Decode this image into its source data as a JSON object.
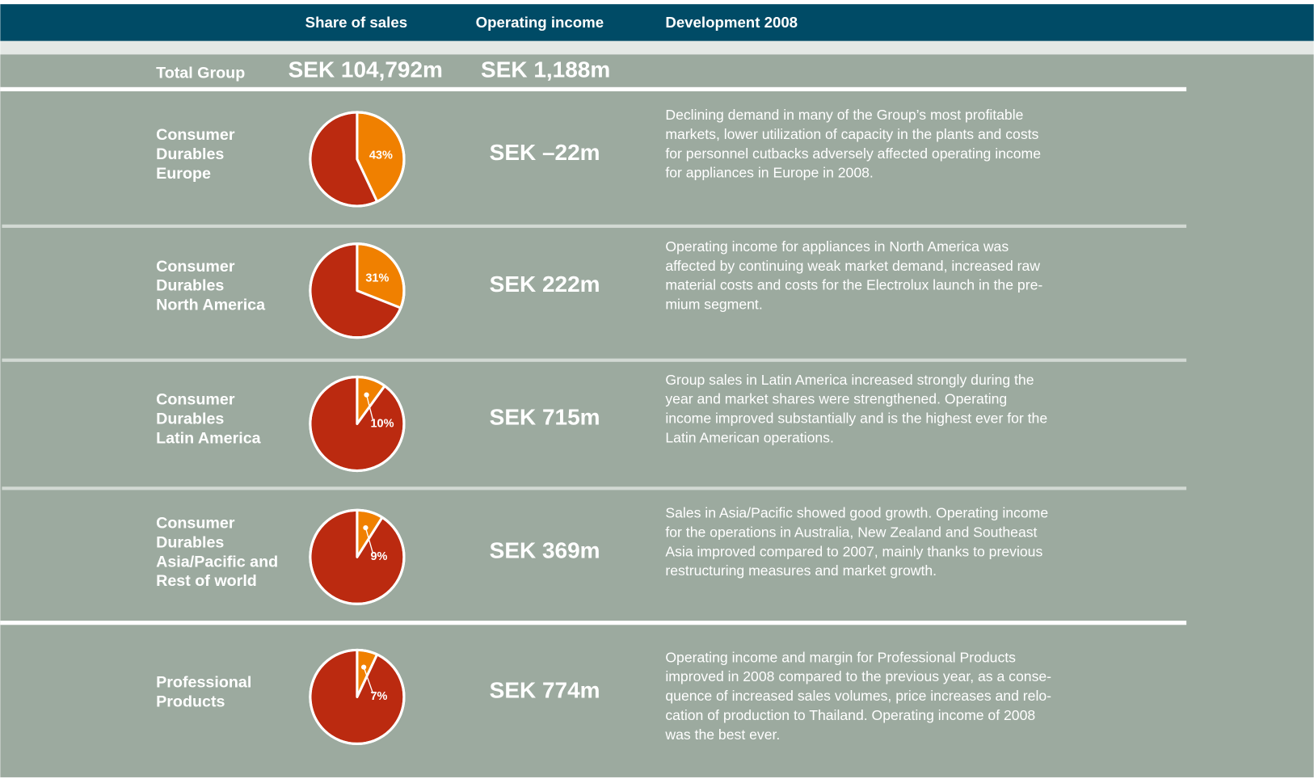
{
  "header": {
    "columns": [
      "Share of sales",
      "Operating income",
      "Development 2008"
    ]
  },
  "total": {
    "name": "Total Group",
    "sales": "SEK 104,792m",
    "income": "SEK 1,188m"
  },
  "rows": [
    {
      "name": [
        "Consumer",
        "Durables",
        "Europe"
      ],
      "share": 43,
      "share_label": "43%",
      "income": "SEK –22m",
      "text": [
        "Declining demand in many of the Group’s most profitable",
        "markets, lower utilization of capacity in the plants and costs",
        "for personnel cutbacks adversely affected operating income",
        "for appliances in Europe in 2008."
      ]
    },
    {
      "name": [
        "Consumer",
        "Durables",
        "North America"
      ],
      "share": 31,
      "share_label": "31%",
      "income": "SEK 222m",
      "text": [
        "Operating income for appliances in North America was",
        "affected by continuing weak market demand, increased raw",
        "material costs and costs for the Electrolux launch in the pre-",
        "mium segment."
      ]
    },
    {
      "name": [
        "Consumer",
        "Durables",
        "Latin America"
      ],
      "share": 10,
      "share_label": "10%",
      "income": "SEK 715m",
      "text": [
        "Group sales in Latin America increased strongly during the",
        "year and market shares were strengthened. Operating",
        "income improved substantially and is the highest ever for the",
        "Latin American operations."
      ]
    },
    {
      "name": [
        "Consumer",
        "Durables",
        "Asia/Pacific and",
        "Rest of world"
      ],
      "share": 9,
      "share_label": "9%",
      "income": "SEK 369m",
      "text": [
        "Sales in Asia/Pacific showed good growth. Operating income",
        "for the operations in Australia, New Zealand and Southeast",
        "Asia improved compared to 2007, mainly thanks to previous",
        "restructuring measures and market growth."
      ]
    },
    {
      "name": [
        "Professional",
        "Products"
      ],
      "share": 7,
      "share_label": "7%",
      "income": "SEK 774m",
      "text": [
        "Operating income and margin for Professional Products",
        "improved in 2008 compared to the previous year, as a conse-",
        "quence of increased sales volumes, price increases and relo-",
        "cation of production to Thailand. Operating income of 2008",
        "was the best ever."
      ]
    }
  ]
}
